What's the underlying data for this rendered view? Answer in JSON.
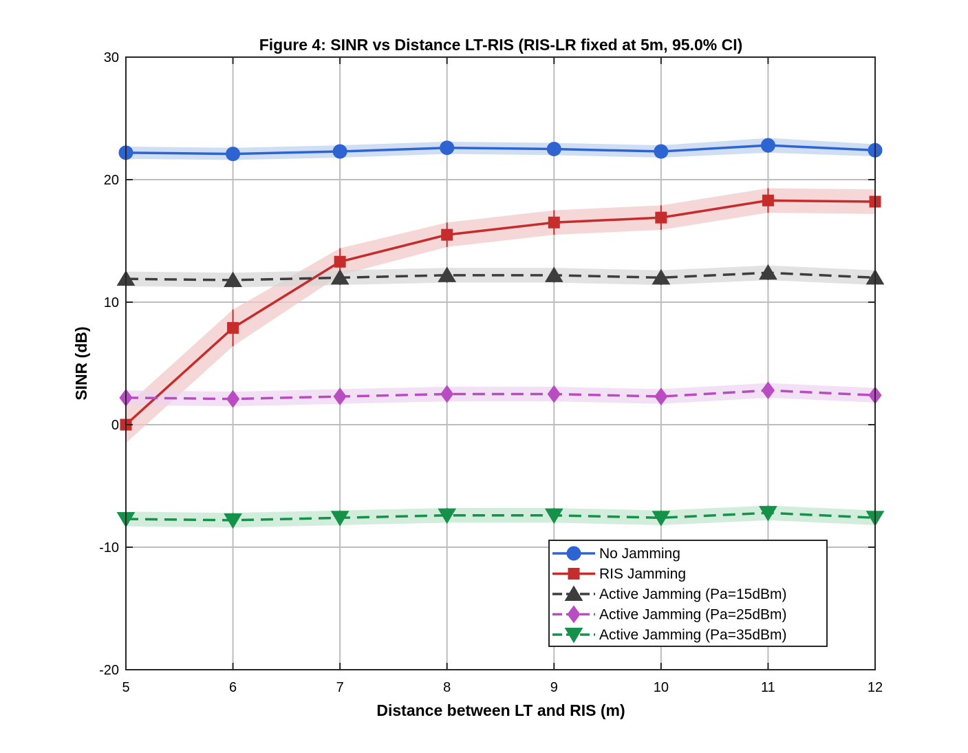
{
  "chart_data": {
    "type": "line",
    "title": "Figure 4: SINR vs Distance LT-RIS (RIS-LR fixed at 5m, 95.0% CI)",
    "xlabel": "Distance between LT and RIS (m)",
    "ylabel": "SINR (dB)",
    "xlim": [
      5,
      12
    ],
    "ylim": [
      -20,
      30
    ],
    "x": [
      5,
      6,
      7,
      8,
      9,
      10,
      11,
      12
    ],
    "xticks": [
      "5",
      "6",
      "7",
      "8",
      "9",
      "10",
      "11",
      "12"
    ],
    "yticks": [
      "-20",
      "-10",
      "0",
      "10",
      "20",
      "30"
    ],
    "grid": true,
    "legend_position": "bottom-right",
    "series": [
      {
        "name": "No Jamming",
        "values": [
          22.2,
          22.1,
          22.3,
          22.6,
          22.5,
          22.3,
          22.8,
          22.4
        ],
        "ci_halfwidth": [
          0.5,
          0.5,
          0.5,
          0.5,
          0.5,
          0.5,
          0.6,
          0.5
        ],
        "color": "#2e64d1",
        "fill": "#bcd0ef",
        "marker": "circle",
        "dash": "solid"
      },
      {
        "name": "RIS Jamming",
        "values": [
          0.0,
          7.9,
          13.3,
          15.5,
          16.5,
          16.9,
          18.3,
          18.2
        ],
        "ci_halfwidth": [
          1.5,
          1.5,
          1.1,
          1.0,
          1.0,
          1.0,
          1.0,
          1.0
        ],
        "color": "#c62c2c",
        "fill": "#f1c6c6",
        "marker": "square",
        "dash": "solid"
      },
      {
        "name": "Active Jamming (Pa=15dBm)",
        "values": [
          11.9,
          11.8,
          12.0,
          12.2,
          12.2,
          12.0,
          12.4,
          12.0
        ],
        "ci_halfwidth": [
          0.6,
          0.6,
          0.6,
          0.6,
          0.6,
          0.6,
          0.6,
          0.6
        ],
        "color": "#3d3d3d",
        "fill": "#d6d6d6",
        "marker": "triangle-up",
        "dash": "dashed"
      },
      {
        "name": "Active Jamming (Pa=25dBm)",
        "values": [
          2.2,
          2.1,
          2.3,
          2.5,
          2.5,
          2.3,
          2.8,
          2.4
        ],
        "ci_halfwidth": [
          0.6,
          0.6,
          0.6,
          0.6,
          0.6,
          0.6,
          0.6,
          0.6
        ],
        "color": "#b94cc2",
        "fill": "#ecd4ef",
        "marker": "diamond",
        "dash": "dashed"
      },
      {
        "name": "Active Jamming (Pa=35dBm)",
        "values": [
          -7.7,
          -7.8,
          -7.6,
          -7.4,
          -7.4,
          -7.6,
          -7.2,
          -7.6
        ],
        "ci_halfwidth": [
          0.6,
          0.6,
          0.6,
          0.6,
          0.6,
          0.6,
          0.6,
          0.6
        ],
        "color": "#16914a",
        "fill": "#bfe6cc",
        "marker": "triangle-down",
        "dash": "dashed"
      }
    ]
  }
}
